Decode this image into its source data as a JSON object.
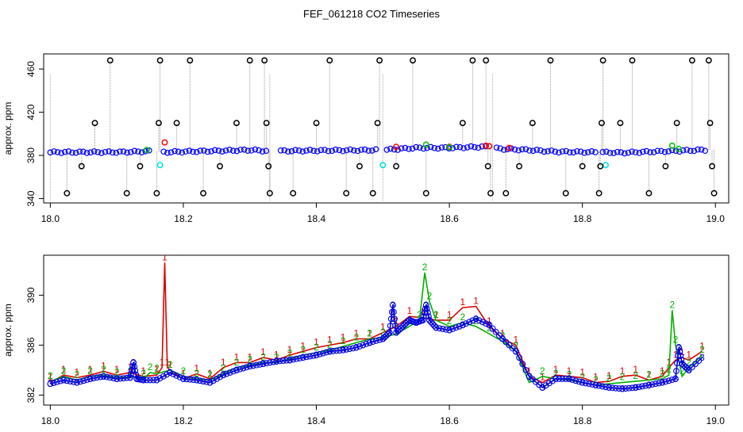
{
  "title": "FEF_061218  CO2 Timeseries",
  "chart_data": [
    {
      "type": "scatter",
      "ylabel": "approx. ppm",
      "xlim": [
        17.99,
        19.02
      ],
      "ylim": [
        336,
        474
      ],
      "xticks": [
        "18.0",
        "18.2",
        "18.4",
        "18.6",
        "18.8",
        "19.0"
      ],
      "yticks": [
        "340",
        "380",
        "420",
        "460"
      ],
      "series": [
        {
          "color": "#0000ff",
          "marker": "circle",
          "baseline": [
            [
              18.0,
              383
            ],
            [
              18.1,
              383
            ],
            [
              18.16,
              384
            ],
            [
              18.17,
              383
            ],
            [
              18.3,
              385
            ],
            [
              18.33,
              384
            ],
            [
              18.4,
              384.5
            ],
            [
              18.5,
              385
            ],
            [
              18.55,
              387
            ],
            [
              18.6,
              387
            ],
            [
              18.65,
              388
            ],
            [
              18.68,
              386
            ],
            [
              18.72,
              385
            ],
            [
              18.76,
              383.5
            ],
            [
              18.82,
              383
            ],
            [
              18.86,
              382.5
            ],
            [
              18.93,
              384
            ],
            [
              18.98,
              385
            ]
          ]
        },
        {
          "color": "#ff0000",
          "marker": "circle",
          "points": [
            [
              18.172,
              392
            ],
            [
              18.52,
              388
            ],
            [
              18.6,
              388
            ],
            [
              18.655,
              389
            ],
            [
              18.69,
              387
            ],
            [
              18.66,
              388.5
            ]
          ]
        },
        {
          "color": "#00c000",
          "marker": "circle",
          "points": [
            [
              18.145,
              385
            ],
            [
              18.565,
              390
            ],
            [
              18.6,
              387.5
            ],
            [
              18.935,
              389
            ],
            [
              18.945,
              386
            ]
          ]
        },
        {
          "color": "#00e0e0",
          "marker": "circle",
          "points": [
            [
              18.165,
              371
            ],
            [
              18.5,
              371
            ],
            [
              18.835,
              371
            ]
          ]
        },
        {
          "color": "#000000",
          "marker": "circle",
          "points": [
            [
              18.025,
              345
            ],
            [
              18.047,
              370
            ],
            [
              18.067,
              410
            ],
            [
              18.09,
              468
            ],
            [
              18.115,
              345
            ],
            [
              18.135,
              370
            ],
            [
              18.16,
              345
            ],
            [
              18.163,
              410
            ],
            [
              18.165,
              468
            ],
            [
              18.19,
              410
            ],
            [
              18.21,
              468
            ],
            [
              18.23,
              345
            ],
            [
              18.255,
              370
            ],
            [
              18.28,
              410
            ],
            [
              18.3,
              468
            ],
            [
              18.322,
              468
            ],
            [
              18.325,
              410
            ],
            [
              18.328,
              370
            ],
            [
              18.33,
              345
            ],
            [
              18.365,
              345
            ],
            [
              18.4,
              410
            ],
            [
              18.42,
              468
            ],
            [
              18.445,
              345
            ],
            [
              18.465,
              370
            ],
            [
              18.485,
              345
            ],
            [
              18.492,
              410
            ],
            [
              18.495,
              468
            ],
            [
              18.52,
              370
            ],
            [
              18.545,
              468
            ],
            [
              18.565,
              345
            ],
            [
              18.62,
              410
            ],
            [
              18.635,
              468
            ],
            [
              18.655,
              468
            ],
            [
              18.658,
              370
            ],
            [
              18.662,
              345
            ],
            [
              18.685,
              345
            ],
            [
              18.705,
              370
            ],
            [
              18.725,
              410
            ],
            [
              18.752,
              468
            ],
            [
              18.775,
              345
            ],
            [
              18.8,
              370
            ],
            [
              18.825,
              345
            ],
            [
              18.827,
              370
            ],
            [
              18.829,
              410
            ],
            [
              18.831,
              468
            ],
            [
              18.857,
              410
            ],
            [
              18.875,
              468
            ],
            [
              18.9,
              345
            ],
            [
              18.925,
              370
            ],
            [
              18.942,
              410
            ],
            [
              18.965,
              468
            ],
            [
              18.99,
              468
            ],
            [
              18.992,
              410
            ],
            [
              18.995,
              370
            ],
            [
              18.998,
              345
            ]
          ]
        }
      ]
    },
    {
      "type": "line",
      "ylabel": "approx. ppm",
      "xlim": [
        17.99,
        19.02
      ],
      "ylim": [
        381.2,
        393.2
      ],
      "xticks": [
        "18.0",
        "18.2",
        "18.4",
        "18.6",
        "18.8",
        "19.0"
      ],
      "yticks": [
        "382",
        "386",
        "390"
      ],
      "series": [
        {
          "name": "1",
          "color": "#dd0000",
          "x": [
            18.0,
            18.02,
            18.04,
            18.06,
            18.08,
            18.1,
            18.12,
            18.14,
            18.16,
            18.168,
            18.172,
            18.176,
            18.18,
            18.2,
            18.22,
            18.24,
            18.26,
            18.28,
            18.3,
            18.32,
            18.34,
            18.36,
            18.38,
            18.4,
            18.42,
            18.44,
            18.46,
            18.48,
            18.5,
            18.52,
            18.54,
            18.56,
            18.58,
            18.6,
            18.62,
            18.64,
            18.66,
            18.68,
            18.7,
            18.72,
            18.74,
            18.76,
            18.78,
            18.8,
            18.82,
            18.84,
            18.86,
            18.88,
            18.9,
            18.92,
            18.93,
            18.94,
            18.95,
            18.96,
            18.98
          ],
          "y": [
            383,
            383.6,
            383.4,
            383.6,
            383.9,
            383.6,
            383.8,
            383.5,
            383.6,
            384.2,
            392.6,
            384.2,
            384,
            383.3,
            383.7,
            383.3,
            384.2,
            384.6,
            384.6,
            385,
            384.8,
            385.2,
            385.5,
            385.8,
            386,
            386.2,
            386.5,
            386.5,
            387,
            387.5,
            388.3,
            388.2,
            388,
            388,
            389,
            389.1,
            387.5,
            386.5,
            386,
            383.5,
            383,
            383.6,
            383.5,
            383.4,
            383,
            383.1,
            383.5,
            383.6,
            383.2,
            383.5,
            384.2,
            384.8,
            385,
            384.8,
            385.5
          ]
        },
        {
          "name": "2",
          "color": "#00b000",
          "x": [
            18.0,
            18.02,
            18.04,
            18.06,
            18.08,
            18.1,
            18.12,
            18.14,
            18.15,
            18.16,
            18.18,
            18.2,
            18.22,
            18.24,
            18.26,
            18.28,
            18.3,
            18.32,
            18.34,
            18.36,
            18.38,
            18.4,
            18.42,
            18.44,
            18.46,
            18.48,
            18.5,
            18.52,
            18.54,
            18.555,
            18.563,
            18.57,
            18.58,
            18.6,
            18.62,
            18.64,
            18.66,
            18.68,
            18.7,
            18.72,
            18.74,
            18.76,
            18.78,
            18.8,
            18.82,
            18.84,
            18.86,
            18.88,
            18.9,
            18.92,
            18.93,
            18.935,
            18.94,
            18.95,
            18.96,
            18.98
          ],
          "y": [
            383.1,
            383.5,
            383.2,
            383.5,
            383.6,
            383.4,
            383.5,
            383.3,
            383.8,
            383.7,
            384,
            383.5,
            383.3,
            383.2,
            383.7,
            384.2,
            384.4,
            384.6,
            384.6,
            384.9,
            385.2,
            385.4,
            385.6,
            385.9,
            386.2,
            386.5,
            386.6,
            386.9,
            387.5,
            388,
            391.8,
            389.5,
            388,
            387.5,
            387.8,
            387.5,
            386.9,
            386.3,
            385.5,
            383,
            383.5,
            383.3,
            383.2,
            383,
            382.8,
            382.9,
            383,
            383.1,
            383.2,
            383.3,
            383.6,
            388.8,
            386,
            383.5,
            384.2,
            385.2
          ]
        },
        {
          "name": "3",
          "color": "#0000dd",
          "x": [
            18.0,
            18.02,
            18.04,
            18.06,
            18.08,
            18.1,
            18.12,
            18.125,
            18.13,
            18.14,
            18.16,
            18.18,
            18.2,
            18.22,
            18.24,
            18.26,
            18.28,
            18.3,
            18.32,
            18.34,
            18.36,
            18.38,
            18.4,
            18.42,
            18.44,
            18.46,
            18.48,
            18.5,
            18.51,
            18.515,
            18.52,
            18.53,
            18.54,
            18.55,
            18.56,
            18.565,
            18.57,
            18.58,
            18.6,
            18.62,
            18.64,
            18.66,
            18.68,
            18.7,
            18.72,
            18.74,
            18.76,
            18.78,
            18.8,
            18.82,
            18.84,
            18.86,
            18.88,
            18.9,
            18.92,
            18.94,
            18.945,
            18.95,
            18.96,
            18.98
          ],
          "y": [
            382.9,
            383.2,
            383,
            383.3,
            383.5,
            383.3,
            383.4,
            384.6,
            383.3,
            383.2,
            383.2,
            383.8,
            383.3,
            383.2,
            383,
            383.6,
            384,
            384.3,
            384.5,
            384.7,
            384.8,
            385,
            385.2,
            385.5,
            385.6,
            385.8,
            386.2,
            386.5,
            387,
            389.2,
            387,
            387.5,
            388,
            387.8,
            388,
            389.2,
            388,
            387.4,
            387.2,
            387.6,
            388.1,
            387.6,
            386.5,
            385.5,
            383.5,
            382.6,
            383.3,
            383.3,
            383,
            382.8,
            382.6,
            382.5,
            382.6,
            382.8,
            383,
            383.3,
            385.8,
            384.5,
            384,
            385
          ]
        }
      ]
    }
  ]
}
